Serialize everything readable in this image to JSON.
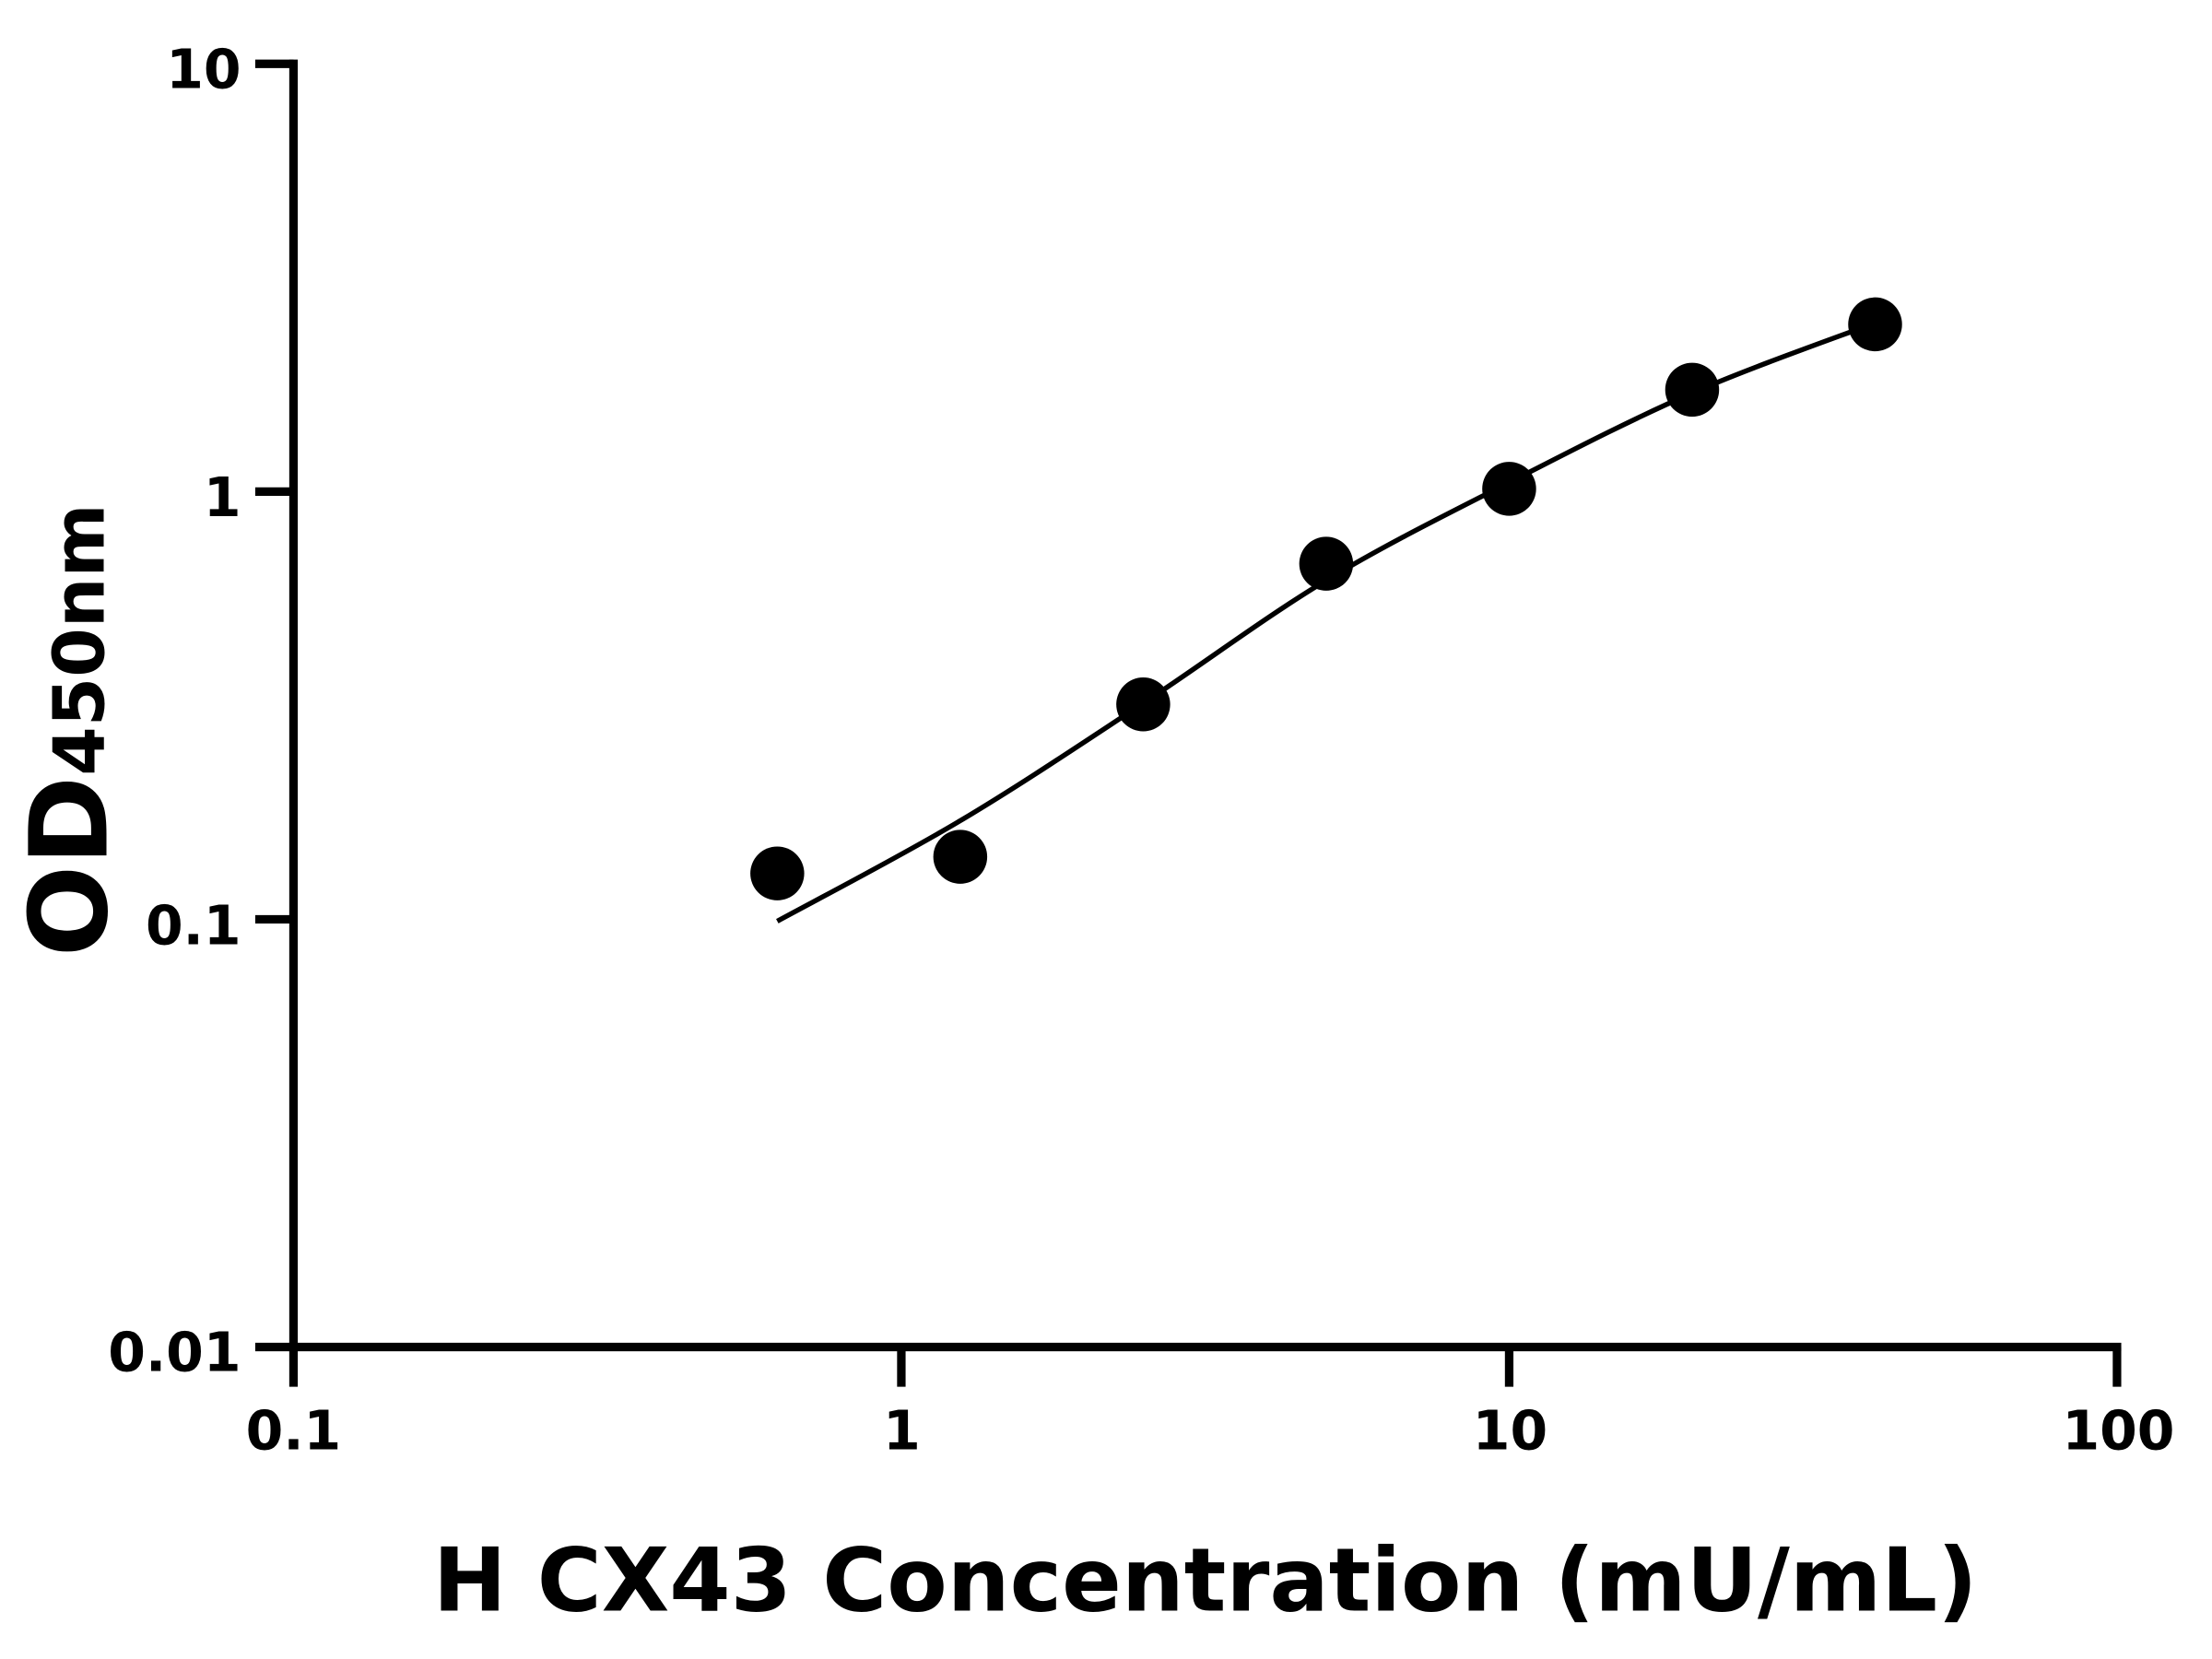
{
  "chart_data": {
    "type": "scatter",
    "title": "",
    "xlabel": "H CX43 Concentration (mU/mL)",
    "ylabel_main": "OD",
    "ylabel_sub": "450nm",
    "x_scale": "log",
    "y_scale": "log",
    "xlim": [
      0.1,
      100
    ],
    "ylim": [
      0.01,
      10
    ],
    "x_ticks": [
      0.1,
      1,
      10,
      100
    ],
    "x_tick_labels": [
      "0.1",
      "1",
      "10",
      "100"
    ],
    "y_ticks": [
      0.01,
      0.1,
      1,
      10
    ],
    "y_tick_labels": [
      "0.01",
      "0.1",
      "1",
      "10"
    ],
    "grid": false,
    "legend": "none",
    "points": {
      "x": [
        0.625,
        1.25,
        2.5,
        5,
        10,
        20,
        40
      ],
      "y": [
        0.128,
        0.14,
        0.318,
        0.678,
        1.015,
        1.73,
        2.46
      ]
    },
    "fit_curve": {
      "x": [
        0.625,
        1.25,
        2.5,
        5,
        10,
        20,
        40
      ],
      "y": [
        0.099,
        0.17,
        0.32,
        0.62,
        1.05,
        1.7,
        2.48
      ]
    },
    "color": "#000000"
  }
}
